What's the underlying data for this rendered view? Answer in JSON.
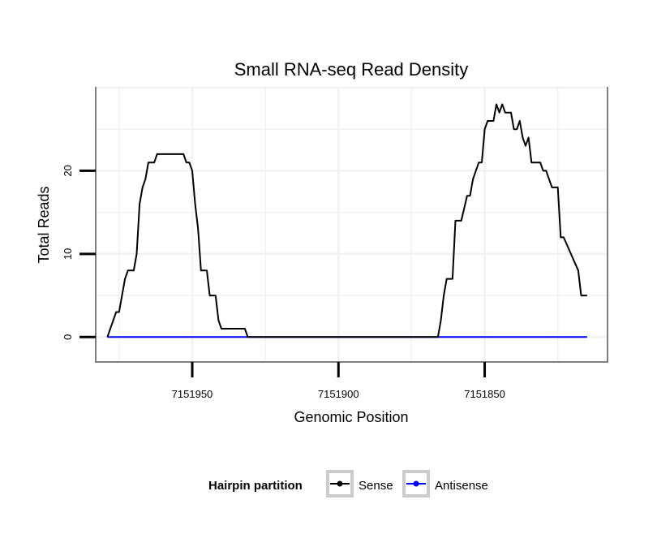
{
  "chart_data": {
    "type": "line",
    "title": "Small RNA-seq Read Density",
    "xlabel": "Genomic Position",
    "ylabel": "Total Reads",
    "x_reversed": true,
    "xlim": [
      7151983,
      7151808
    ],
    "ylim": [
      -3,
      30
    ],
    "x_ticks": [
      7151950,
      7151900,
      7151850
    ],
    "x_tick_labels": [
      "7151950",
      "7151900",
      "7151850"
    ],
    "y_ticks": [
      0,
      10,
      20
    ],
    "y_tick_labels": [
      "0",
      "10",
      "20"
    ],
    "grid": true,
    "legend": {
      "title": "Hairpin partition",
      "position": "bottom",
      "entries": [
        {
          "label": "Sense",
          "color": "#000000"
        },
        {
          "label": "Antisense",
          "color": "#0000ff"
        }
      ]
    },
    "series": [
      {
        "name": "Sense",
        "color": "#000000",
        "points": [
          [
            7151979,
            0
          ],
          [
            7151976,
            3
          ],
          [
            7151975,
            3
          ],
          [
            7151973,
            7
          ],
          [
            7151972,
            8
          ],
          [
            7151970,
            8
          ],
          [
            7151969,
            10
          ],
          [
            7151968,
            16
          ],
          [
            7151967,
            18
          ],
          [
            7151966,
            19
          ],
          [
            7151965,
            21
          ],
          [
            7151963,
            21
          ],
          [
            7151962,
            22
          ],
          [
            7151953,
            22
          ],
          [
            7151952,
            21
          ],
          [
            7151951,
            21
          ],
          [
            7151950,
            20
          ],
          [
            7151949,
            16
          ],
          [
            7151948,
            13
          ],
          [
            7151947,
            8
          ],
          [
            7151945,
            8
          ],
          [
            7151944,
            5
          ],
          [
            7151942,
            5
          ],
          [
            7151941,
            2
          ],
          [
            7151940,
            1
          ],
          [
            7151932,
            1
          ],
          [
            7151931,
            0
          ],
          [
            7151866,
            0
          ],
          [
            7151865,
            2
          ],
          [
            7151864,
            5
          ],
          [
            7151863,
            7
          ],
          [
            7151861,
            7
          ],
          [
            7151860,
            14
          ],
          [
            7151858,
            14
          ],
          [
            7151856,
            17
          ],
          [
            7151855,
            17
          ],
          [
            7151854,
            19
          ],
          [
            7151852,
            21
          ],
          [
            7151851,
            21
          ],
          [
            7151850,
            25
          ],
          [
            7151849,
            26
          ],
          [
            7151847,
            26
          ],
          [
            7151846,
            28
          ],
          [
            7151845,
            27
          ],
          [
            7151844,
            28
          ],
          [
            7151843,
            27
          ],
          [
            7151841,
            27
          ],
          [
            7151840,
            25
          ],
          [
            7151839,
            25
          ],
          [
            7151838,
            26
          ],
          [
            7151837,
            24
          ],
          [
            7151836,
            23
          ],
          [
            7151835,
            24
          ],
          [
            7151834,
            21
          ],
          [
            7151831,
            21
          ],
          [
            7151830,
            20
          ],
          [
            7151829,
            20
          ],
          [
            7151827,
            18
          ],
          [
            7151825,
            18
          ],
          [
            7151824,
            12
          ],
          [
            7151823,
            12
          ],
          [
            7151818,
            8
          ],
          [
            7151817,
            5
          ],
          [
            7151815,
            5
          ]
        ]
      },
      {
        "name": "Antisense",
        "color": "#0000ff",
        "points": [
          [
            7151979,
            0
          ],
          [
            7151815,
            0
          ]
        ]
      }
    ]
  }
}
